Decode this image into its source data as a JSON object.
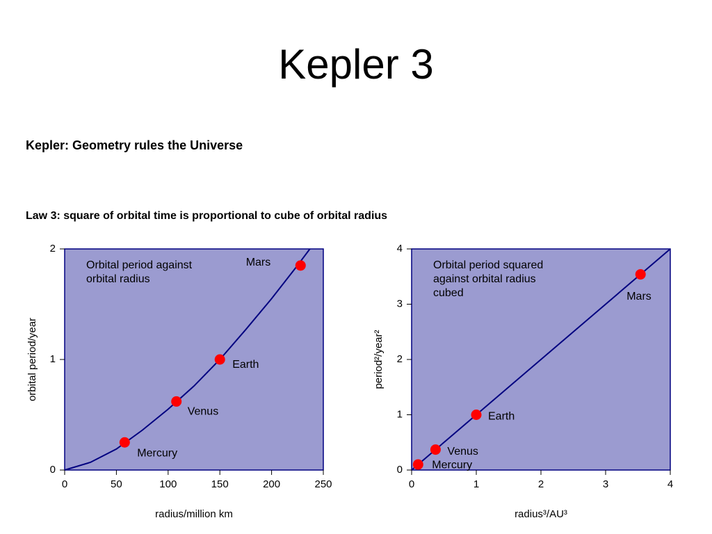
{
  "title": "Kepler 3",
  "subtitle": "Kepler: Geometry rules the Universe",
  "law": "Law 3: square of orbital time is proportional to cube of orbital radius",
  "chart_data": [
    {
      "type": "scatter",
      "annotation": [
        "Orbital period against",
        "orbital radius"
      ],
      "xlabel": "radius/million km",
      "ylabel": "orbital period/year",
      "xlim": [
        0,
        250
      ],
      "ylim": [
        0,
        2
      ],
      "xticks": [
        0,
        50,
        100,
        150,
        200,
        250
      ],
      "yticks": [
        0,
        1,
        2
      ],
      "background": "#9b9bd0",
      "line": {
        "color": "#000080",
        "x": [
          0,
          25,
          50,
          75,
          100,
          125,
          150,
          175,
          200,
          225,
          237
        ],
        "values": [
          0,
          0.07,
          0.19,
          0.36,
          0.55,
          0.76,
          1.0,
          1.27,
          1.55,
          1.85,
          2.0
        ]
      },
      "points": {
        "color": "#ff0000",
        "x": [
          58,
          108,
          150,
          228
        ],
        "values": [
          0.25,
          0.62,
          1.0,
          1.85
        ],
        "labels": [
          "Mercury",
          "Venus",
          "Earth",
          "Mars"
        ]
      }
    },
    {
      "type": "scatter",
      "annotation": [
        "Orbital period squared",
        "against orbital radius",
        "cubed"
      ],
      "xlabel": "radius³/AU³",
      "ylabel": "period²/year²",
      "xlim": [
        0,
        4
      ],
      "ylim": [
        0,
        4
      ],
      "xticks": [
        0,
        1,
        2,
        3,
        4
      ],
      "yticks": [
        0,
        1,
        2,
        3,
        4
      ],
      "background": "#9b9bd0",
      "line": {
        "color": "#000080",
        "x": [
          0,
          4
        ],
        "values": [
          0,
          4
        ]
      },
      "points": {
        "color": "#ff0000",
        "x": [
          0.1,
          0.37,
          1.0,
          3.54
        ],
        "values": [
          0.1,
          0.37,
          1.0,
          3.54
        ],
        "labels": [
          "Mercury",
          "Venus",
          "Earth",
          "Mars"
        ]
      }
    }
  ]
}
